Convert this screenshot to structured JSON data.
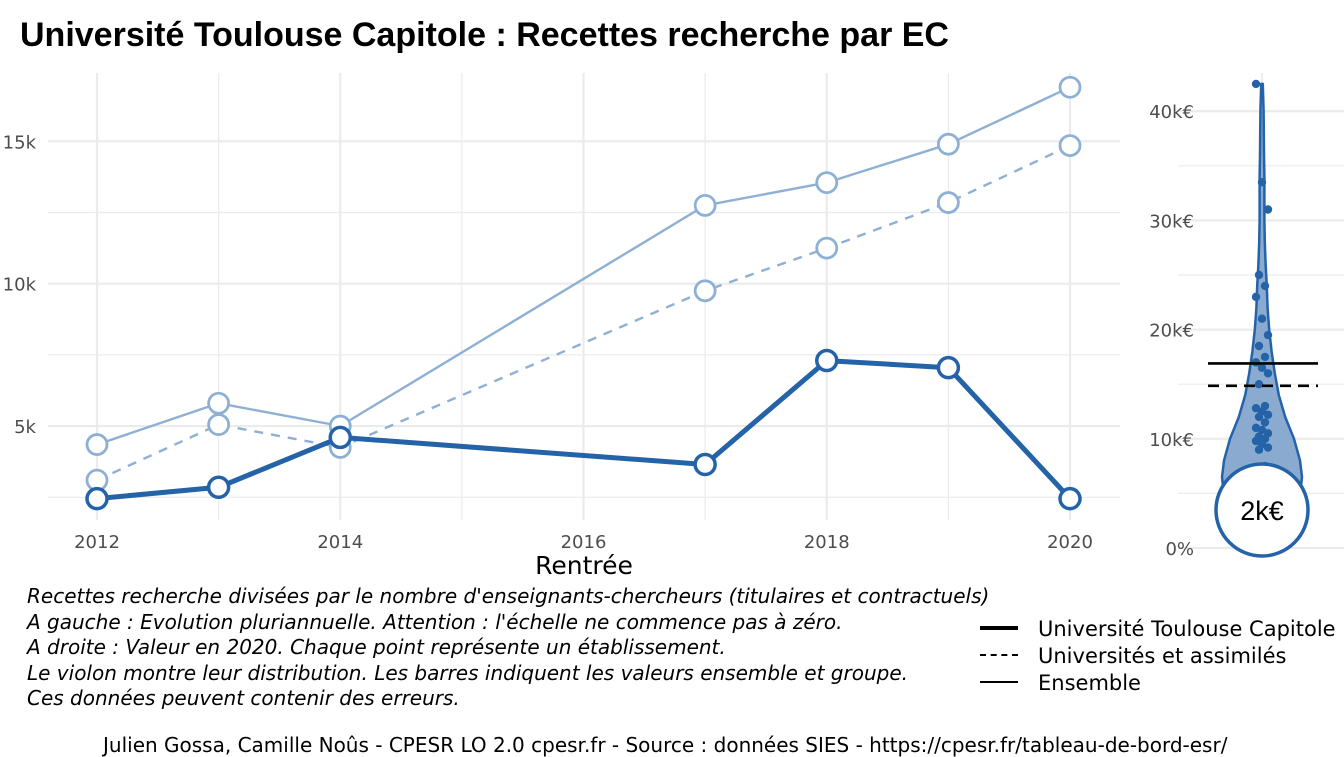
{
  "title": "Université Toulouse Capitole  :  Recettes recherche par EC",
  "colors": {
    "primary": "#2463a8",
    "light": "#8eb0d4",
    "violin_fill": "#8aaad0",
    "grid": "#ebebeb",
    "text_axis": "#4d4d4d",
    "reference": "#000000"
  },
  "chart_data": [
    {
      "type": "line",
      "xlabel": "Rentrée",
      "ylabel": "",
      "xlim": [
        2012,
        2020
      ],
      "ylim": [
        1700,
        17400
      ],
      "x_ticks": [
        2012,
        2014,
        2016,
        2018,
        2020
      ],
      "x_tick_labels": [
        "2012",
        "2014",
        "2016",
        "2018",
        "2020"
      ],
      "y_ticks": [
        5000,
        10000,
        15000
      ],
      "y_tick_labels": [
        "5k",
        "10k",
        "15k"
      ],
      "grid": true,
      "series": [
        {
          "name": "Université Toulouse Capitole",
          "style": "solid-thick",
          "points": [
            {
              "x": 2012,
              "y": 2450
            },
            {
              "x": 2013,
              "y": 2850
            },
            {
              "x": 2014,
              "y": 4600
            },
            {
              "x": 2017,
              "y": 3650
            },
            {
              "x": 2018,
              "y": 7300
            },
            {
              "x": 2019,
              "y": 7050
            },
            {
              "x": 2020,
              "y": 2450
            }
          ]
        },
        {
          "name": "Universités et assimilés",
          "style": "dashed",
          "points": [
            {
              "x": 2012,
              "y": 3100
            },
            {
              "x": 2013,
              "y": 5050
            },
            {
              "x": 2014,
              "y": 4250
            },
            {
              "x": 2017,
              "y": 9750
            },
            {
              "x": 2018,
              "y": 11250
            },
            {
              "x": 2019,
              "y": 12850
            },
            {
              "x": 2020,
              "y": 14850
            }
          ]
        },
        {
          "name": "Ensemble",
          "style": "solid-thin",
          "points": [
            {
              "x": 2012,
              "y": 4350
            },
            {
              "x": 2013,
              "y": 5800
            },
            {
              "x": 2014,
              "y": 5000
            },
            {
              "x": 2017,
              "y": 12750
            },
            {
              "x": 2018,
              "y": 13550
            },
            {
              "x": 2019,
              "y": 14900
            },
            {
              "x": 2020,
              "y": 16900
            }
          ]
        }
      ]
    },
    {
      "type": "violin",
      "ylim": [
        0,
        43500
      ],
      "y_ticks": [
        0,
        10000,
        20000,
        30000,
        40000
      ],
      "y_tick_labels": [
        "0%",
        "10k€",
        "20k€",
        "30k€",
        "40k€"
      ],
      "grid": true,
      "highlight_value_label": "2k€",
      "highlight_value": 2450,
      "reference_lines": [
        {
          "name": "Ensemble",
          "value": 16900,
          "style": "solid"
        },
        {
          "name": "Universités et assimilés",
          "value": 14850,
          "style": "dashed"
        }
      ],
      "points": [
        42500,
        33500,
        31000,
        25000,
        24000,
        23000,
        21000,
        19500,
        18500,
        17500,
        17000,
        16500,
        16000,
        15000,
        13000,
        12800,
        12500,
        12200,
        12000,
        11500,
        11000,
        10800,
        10500,
        10200,
        10000,
        9800,
        9500,
        9200,
        9000,
        7500
      ],
      "density": [
        {
          "y": 5500,
          "w": 0.97
        },
        {
          "y": 6500,
          "w": 1.0
        },
        {
          "y": 8000,
          "w": 0.95
        },
        {
          "y": 10000,
          "w": 0.8
        },
        {
          "y": 12000,
          "w": 0.58
        },
        {
          "y": 14000,
          "w": 0.42
        },
        {
          "y": 16000,
          "w": 0.32
        },
        {
          "y": 18000,
          "w": 0.24
        },
        {
          "y": 20000,
          "w": 0.18
        },
        {
          "y": 22000,
          "w": 0.14
        },
        {
          "y": 24000,
          "w": 0.12
        },
        {
          "y": 26000,
          "w": 0.09
        },
        {
          "y": 28000,
          "w": 0.07
        },
        {
          "y": 30000,
          "w": 0.06
        },
        {
          "y": 32000,
          "w": 0.06
        },
        {
          "y": 34000,
          "w": 0.06
        },
        {
          "y": 36000,
          "w": 0.05
        },
        {
          "y": 38000,
          "w": 0.045
        },
        {
          "y": 40000,
          "w": 0.04
        },
        {
          "y": 42500,
          "w": 0.02
        }
      ]
    }
  ],
  "caption_lines": [
    "Recettes recherche divisées par le nombre d'enseignants-chercheurs (titulaires et contractuels)",
    "A gauche : Evolution pluriannuelle. Attention : l'échelle ne commence pas à zéro.",
    "A droite : Valeur en 2020. Chaque point représente un établissement.",
    "Le violon montre leur distribution. Les barres indiquent les valeurs ensemble et groupe.",
    "Ces données peuvent contenir des erreurs."
  ],
  "legend": [
    {
      "label": "Université Toulouse Capitole",
      "style": "solid-thick"
    },
    {
      "label": "Universités et assimilés",
      "style": "dashed"
    },
    {
      "label": "Ensemble",
      "style": "solid-thin"
    }
  ],
  "credit": "Julien Gossa, Camille Noûs - CPESR LO 2.0 cpesr.fr - Source : données SIES - https://cpesr.fr/tableau-de-bord-esr/"
}
